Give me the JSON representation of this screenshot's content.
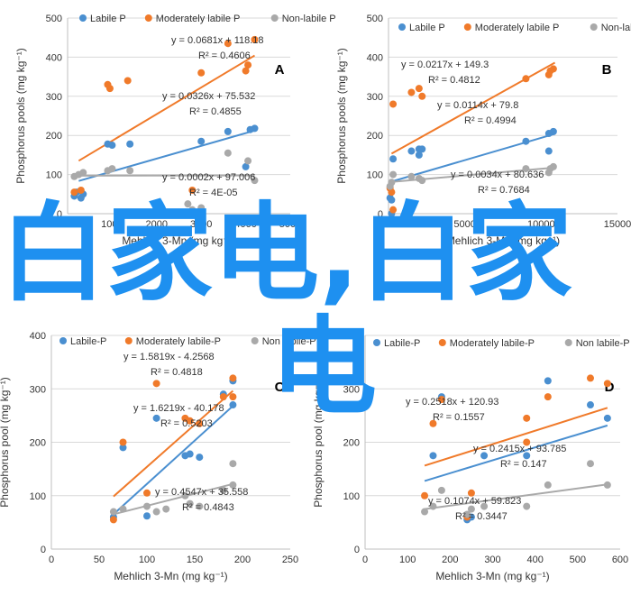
{
  "overlay": {
    "line1": "白家电,白家",
    "line2": "电"
  },
  "colors": {
    "labile": "#4a8fd0",
    "moderate": "#f07a2a",
    "nonlabile": "#a9a9a9"
  },
  "chart_data": [
    {
      "type": "scatter",
      "panel_label": "A",
      "xlabel": "Mehlich 3-Mn (mg kg⁻¹)",
      "ylabel": "Phosphorus pools (mg kg⁻¹)",
      "xlim": [
        0,
        5000
      ],
      "ylim": [
        0,
        500
      ],
      "xticks": [
        "0",
        "1000",
        "2000",
        "3000",
        "4000",
        "5000"
      ],
      "yticks": [
        "0",
        "100",
        "200",
        "300",
        "400",
        "500"
      ],
      "legend": "top",
      "series": [
        {
          "name": "Labile P",
          "color": "labile",
          "points": [
            [
              150,
              45
            ],
            [
              200,
              55
            ],
            [
              300,
              40
            ],
            [
              350,
              50
            ],
            [
              900,
              178
            ],
            [
              1000,
              175
            ],
            [
              1400,
              178
            ],
            [
              3000,
              185
            ],
            [
              3600,
              210
            ],
            [
              4100,
              215
            ],
            [
              4200,
              218
            ],
            [
              4000,
              120
            ]
          ],
          "fit": [
            250,
            4200
          ],
          "eq": "y = 0.0326x + 75.532",
          "r2": "R² = 0.4855"
        },
        {
          "name": "Moderately labile P",
          "color": "moderate",
          "points": [
            [
              150,
              55
            ],
            [
              300,
              60
            ],
            [
              900,
              330
            ],
            [
              950,
              320
            ],
            [
              1350,
              340
            ],
            [
              2800,
              60
            ],
            [
              3000,
              360
            ],
            [
              3600,
              435
            ],
            [
              4050,
              380
            ],
            [
              4200,
              445
            ],
            [
              4000,
              365
            ]
          ],
          "fit": [
            250,
            4200
          ],
          "eq": "y = 0.0681x + 118.18",
          "r2": "R² = 0.4606"
        },
        {
          "name": "Non-labile P",
          "color": "nonlabile",
          "points": [
            [
              150,
              95
            ],
            [
              250,
              100
            ],
            [
              350,
              105
            ],
            [
              900,
              110
            ],
            [
              1000,
              115
            ],
            [
              1400,
              110
            ],
            [
              2700,
              25
            ],
            [
              2800,
              10
            ],
            [
              3000,
              15
            ],
            [
              3600,
              155
            ],
            [
              4050,
              135
            ],
            [
              4200,
              85
            ]
          ],
          "fit": [
            250,
            4200
          ],
          "eq": "y = 0.0002x + 97.006",
          "r2": "R² = 4E-05"
        }
      ]
    },
    {
      "type": "scatter",
      "panel_label": "B",
      "xlabel": "Mehlich 3-Mn (mg kg⁻¹)",
      "ylabel": "Phosphorus pools (mg kg⁻¹)",
      "xlim": [
        0,
        15000
      ],
      "ylim": [
        0,
        500
      ],
      "xticks": [
        "0",
        "5000",
        "10000",
        "15000"
      ],
      "yticks": [
        "0",
        "100",
        "200",
        "300",
        "400",
        "500"
      ],
      "legend": "top",
      "series": [
        {
          "name": "Labile P",
          "color": "labile",
          "points": [
            [
              100,
              40
            ],
            [
              200,
              35
            ],
            [
              300,
              140
            ],
            [
              1500,
              160
            ],
            [
              2000,
              165
            ],
            [
              2200,
              165
            ],
            [
              2000,
              150
            ],
            [
              9000,
              185
            ],
            [
              10500,
              205
            ],
            [
              10800,
              210
            ],
            [
              10500,
              160
            ],
            [
              200,
              0
            ]
          ],
          "fit": [
            200,
            10900
          ],
          "eq": "y = 0.0114x + 79.8",
          "r2": "R² = 0.4994"
        },
        {
          "name": "Moderately labile P",
          "color": "moderate",
          "points": [
            [
              100,
              65
            ],
            [
              200,
              55
            ],
            [
              300,
              280
            ],
            [
              1500,
              310
            ],
            [
              2000,
              320
            ],
            [
              2200,
              300
            ],
            [
              9000,
              345
            ],
            [
              10500,
              355
            ],
            [
              10800,
              370
            ],
            [
              10600,
              365
            ],
            [
              300,
              10
            ]
          ],
          "fit": [
            200,
            10900
          ],
          "eq": "y = 0.0217x + 149.3",
          "r2": "R² = 0.4812"
        },
        {
          "name": "Non-labile P",
          "color": "nonlabile",
          "points": [
            [
              100,
              70
            ],
            [
              200,
              80
            ],
            [
              300,
              100
            ],
            [
              1500,
              95
            ],
            [
              2000,
              90
            ],
            [
              2200,
              85
            ],
            [
              9000,
              115
            ],
            [
              10500,
              105
            ],
            [
              10800,
              120
            ],
            [
              10600,
              115
            ]
          ],
          "fit": [
            200,
            10900
          ],
          "eq": "y = 0.0034x + 80.636",
          "r2": "R² = 0.7684"
        }
      ]
    },
    {
      "type": "scatter",
      "panel_label": "C",
      "xlabel": "Mehlich 3-Mn (mg kg⁻¹)",
      "ylabel": "Phosphorus pool (mg kg⁻¹)",
      "xlim": [
        0,
        250
      ],
      "ylim": [
        0,
        400
      ],
      "xticks": [
        "0",
        "50",
        "100",
        "150",
        "200",
        "250"
      ],
      "yticks": [
        "0",
        "100",
        "200",
        "300",
        "400"
      ],
      "legend": "top",
      "series": [
        {
          "name": "Labile-P",
          "color": "labile",
          "points": [
            [
              65,
              60
            ],
            [
              75,
              190
            ],
            [
              100,
              62
            ],
            [
              110,
              245
            ],
            [
              140,
              175
            ],
            [
              145,
              178
            ],
            [
              155,
              172
            ],
            [
              180,
              290
            ],
            [
              190,
              270
            ],
            [
              190,
              315
            ]
          ],
          "fit": [
            65,
            190
          ],
          "eq": "y = 1.6219x - 40.178",
          "r2": "R² = 0.5203"
        },
        {
          "name": "Moderately labile-P",
          "color": "moderate",
          "points": [
            [
              65,
              55
            ],
            [
              75,
              200
            ],
            [
              100,
              105
            ],
            [
              110,
              310
            ],
            [
              140,
              245
            ],
            [
              145,
              240
            ],
            [
              155,
              235
            ],
            [
              180,
              285
            ],
            [
              190,
              285
            ],
            [
              190,
              320
            ]
          ],
          "fit": [
            65,
            190
          ],
          "eq": "y = 1.5819x - 4.2568",
          "r2": "R² = 0.4818"
        },
        {
          "name": "Non labile-P",
          "color": "nonlabile",
          "points": [
            [
              65,
              70
            ],
            [
              75,
              75
            ],
            [
              100,
              80
            ],
            [
              110,
              70
            ],
            [
              120,
              75
            ],
            [
              140,
              100
            ],
            [
              145,
              85
            ],
            [
              155,
              80
            ],
            [
              180,
              110
            ],
            [
              190,
              160
            ],
            [
              190,
              120
            ]
          ],
          "fit": [
            65,
            190
          ],
          "eq": "y = 0.4547x + 35.558",
          "r2": "R² = 0.4843"
        }
      ]
    },
    {
      "type": "scatter",
      "panel_label": "D",
      "xlabel": "Mehlich 3-Mn (mg kg⁻¹)",
      "ylabel": "Phosphorus pool (mg kg⁻¹)",
      "xlim": [
        0,
        600
      ],
      "ylim": [
        0,
        400
      ],
      "xticks": [
        "0",
        "100",
        "200",
        "300",
        "400",
        "500",
        "600"
      ],
      "yticks": [
        "0",
        "100",
        "200",
        "300",
        "400"
      ],
      "legend": "top",
      "series": [
        {
          "name": "Labile-P",
          "color": "labile",
          "points": [
            [
              160,
              175
            ],
            [
              180,
              285
            ],
            [
              250,
              60
            ],
            [
              280,
              175
            ],
            [
              380,
              175
            ],
            [
              430,
              315
            ],
            [
              530,
              270
            ],
            [
              570,
              245
            ],
            [
              240,
              55
            ]
          ],
          "fit": [
            140,
            570
          ],
          "eq": "y = 0.2415x + 93.785",
          "r2": "R² = 0.147"
        },
        {
          "name": "Moderately labile-P",
          "color": "moderate",
          "points": [
            [
              140,
              100
            ],
            [
              160,
              235
            ],
            [
              180,
              280
            ],
            [
              250,
              105
            ],
            [
              380,
              245
            ],
            [
              380,
              200
            ],
            [
              430,
              285
            ],
            [
              530,
              320
            ],
            [
              570,
              310
            ],
            [
              240,
              60
            ]
          ],
          "fit": [
            140,
            570
          ],
          "eq": "y = 0.2518x + 120.93",
          "r2": "R² = 0.1557"
        },
        {
          "name": "Non labile-P",
          "color": "nonlabile",
          "points": [
            [
              140,
              70
            ],
            [
              160,
              80
            ],
            [
              180,
              110
            ],
            [
              240,
              65
            ],
            [
              250,
              75
            ],
            [
              280,
              80
            ],
            [
              380,
              80
            ],
            [
              430,
              120
            ],
            [
              530,
              160
            ],
            [
              570,
              120
            ]
          ],
          "fit": [
            140,
            570
          ],
          "eq": "y = 0.1074x + 59.823",
          "r2": "R² = 0.3447"
        }
      ]
    }
  ]
}
